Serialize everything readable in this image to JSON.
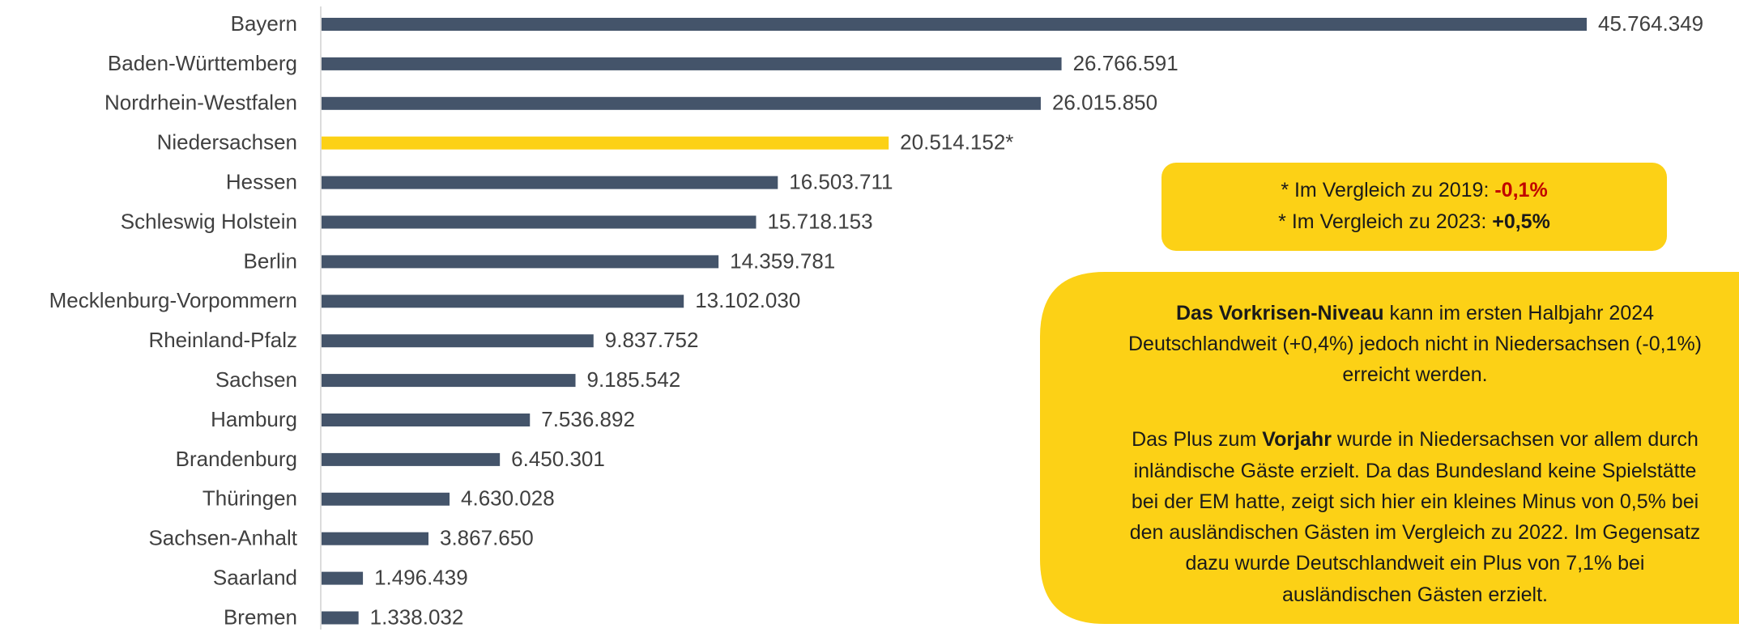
{
  "chart_data": {
    "type": "bar",
    "orientation": "horizontal",
    "categories": [
      "Bayern",
      "Baden-Württemberg",
      "Nordrhein-Westfalen",
      "Niedersachsen",
      "Hessen",
      "Schleswig Holstein",
      "Berlin",
      "Mecklenburg-Vorpommern",
      "Rheinland-Pfalz",
      "Sachsen",
      "Hamburg",
      "Brandenburg",
      "Thüringen",
      "Sachsen-Anhalt",
      "Saarland",
      "Bremen"
    ],
    "values": [
      45764349,
      26766591,
      26015850,
      20514152,
      16503711,
      15718153,
      14359781,
      13102030,
      9837752,
      9185542,
      7536892,
      6450301,
      4630028,
      3867650,
      1496439,
      1338032
    ],
    "value_labels": [
      "45.764.349",
      "26.766.591",
      "26.015.850",
      "20.514.152*",
      "16.503.711",
      "15.718.153",
      "14.359.781",
      "13.102.030",
      "9.837.752",
      "9.185.542",
      "7.536.892",
      "6.450.301",
      "4.630.028",
      "3.867.650",
      "1.496.439",
      "1.338.032"
    ],
    "colors": [
      "#44546a",
      "#44546a",
      "#44546a",
      "#fcd116",
      "#44546a",
      "#44546a",
      "#44546a",
      "#44546a",
      "#44546a",
      "#44546a",
      "#44546a",
      "#44546a",
      "#44546a",
      "#44546a",
      "#44546a",
      "#44546a"
    ]
  },
  "notes": {
    "comparison": {
      "lines": [
        [
          {
            "text": "* Im Vergleich zu 2019: "
          },
          {
            "text": "-0,1%",
            "bold": true,
            "color": "#c00000"
          }
        ],
        [
          {
            "text": "* Im Vergleich zu 2023: "
          },
          {
            "text": "+0,5%",
            "bold": true
          }
        ]
      ]
    },
    "summary": {
      "lines": [
        [
          {
            "text": "Das Vorkrisen-Niveau",
            "bold": true
          },
          {
            "text": " kann im ersten Halbjahr 2024"
          }
        ],
        [
          {
            "text": "Deutschlandweit (+0,4%) jedoch nicht in Niedersachsen (-0,1%)"
          }
        ],
        [
          {
            "text": "erreicht werden."
          }
        ],
        [
          {
            "text": "Das Plus zum "
          },
          {
            "text": "Vorjahr",
            "bold": true
          },
          {
            "text": " wurde in Niedersachsen vor allem durch"
          }
        ],
        [
          {
            "text": "inländische Gäste erzielt. Da das Bundesland keine Spielstätte"
          }
        ],
        [
          {
            "text": "bei der EM hatte, zeigt sich hier ein kleines Minus von 0,5% bei"
          }
        ],
        [
          {
            "text": "den ausländischen Gästen im Vergleich zu 2022. Im Gegensatz"
          }
        ],
        [
          {
            "text": "dazu wurde Deutschlandweit ein Plus von 7,1% bei"
          }
        ],
        [
          {
            "text": "ausländischen Gästen erzielt."
          }
        ]
      ]
    }
  }
}
